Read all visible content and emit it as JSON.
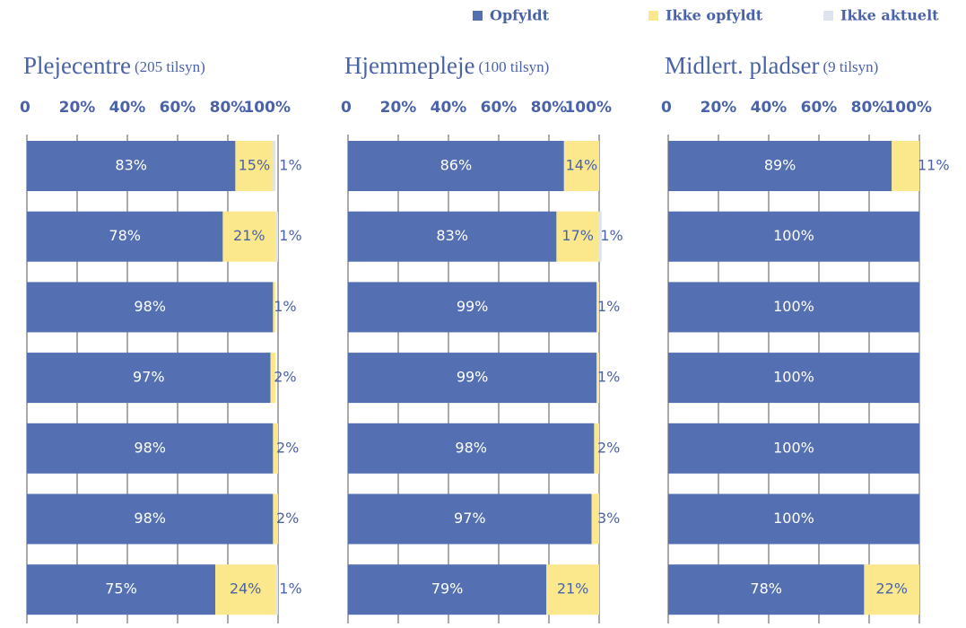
{
  "chart_data": {
    "type": "bar",
    "orientation": "horizontal",
    "stacked": true,
    "grid": true,
    "legend": "top",
    "series": [
      {
        "name": "Opfyldt",
        "color": "#5470b3"
      },
      {
        "name": "Ikke opfyldt",
        "color": "#fbe88c"
      },
      {
        "name": "Ikke aktuelt",
        "color": "#dde4ee"
      }
    ],
    "xlim": [
      0,
      100
    ],
    "xticks": [
      0,
      {
        "value": 20,
        "label": "20%"
      },
      {
        "value": 40,
        "label": "40%"
      },
      {
        "value": 60,
        "label": "60%"
      },
      {
        "value": 80,
        "label": "80%"
      },
      {
        "value": 100,
        "label": "100%"
      }
    ],
    "panels": [
      {
        "title": "Plejecentre",
        "subtitle": "(205 tilsyn)",
        "values": [
          [
            83,
            78,
            98,
            97,
            98,
            98,
            75
          ],
          [
            15,
            21,
            1,
            2,
            2,
            2,
            24
          ],
          [
            1,
            1,
            null,
            null,
            null,
            null,
            1
          ]
        ],
        "value_labels": [
          [
            "83%",
            "78%",
            "98%",
            "97%",
            "98%",
            "98%",
            "75%"
          ],
          [
            "15%",
            "21%",
            "1%",
            "2%",
            "2%",
            "2%",
            "24%"
          ],
          [
            "1%",
            "1%",
            null,
            null,
            null,
            null,
            "1%"
          ]
        ]
      },
      {
        "title": "Hjemmepleje",
        "subtitle": "(100 tilsyn)",
        "values": [
          [
            86,
            83,
            99,
            99,
            98,
            97,
            79
          ],
          [
            14,
            17,
            1,
            1,
            2,
            3,
            21
          ],
          [
            null,
            1,
            null,
            null,
            null,
            null,
            null
          ]
        ],
        "value_labels": [
          [
            "86%",
            "83%",
            "99%",
            "99%",
            "98%",
            "97%",
            "79%"
          ],
          [
            "14%",
            "17%",
            "1%",
            "1%",
            "2%",
            "3%",
            "21%"
          ],
          [
            null,
            "1%",
            null,
            null,
            null,
            null,
            null
          ]
        ]
      },
      {
        "title": "Midlert. pladser",
        "subtitle": "(9 tilsyn)",
        "values": [
          [
            89,
            100,
            100,
            100,
            100,
            100,
            78
          ],
          [
            11,
            null,
            null,
            null,
            null,
            null,
            22
          ],
          [
            null,
            null,
            null,
            null,
            null,
            null,
            null
          ]
        ],
        "value_labels": [
          [
            "89%",
            "100%",
            "100%",
            "100%",
            "100%",
            "100%",
            "78%"
          ],
          [
            "11%",
            null,
            null,
            null,
            null,
            null,
            "22%"
          ],
          [
            null,
            null,
            null,
            null,
            null,
            null,
            null
          ]
        ]
      }
    ]
  }
}
